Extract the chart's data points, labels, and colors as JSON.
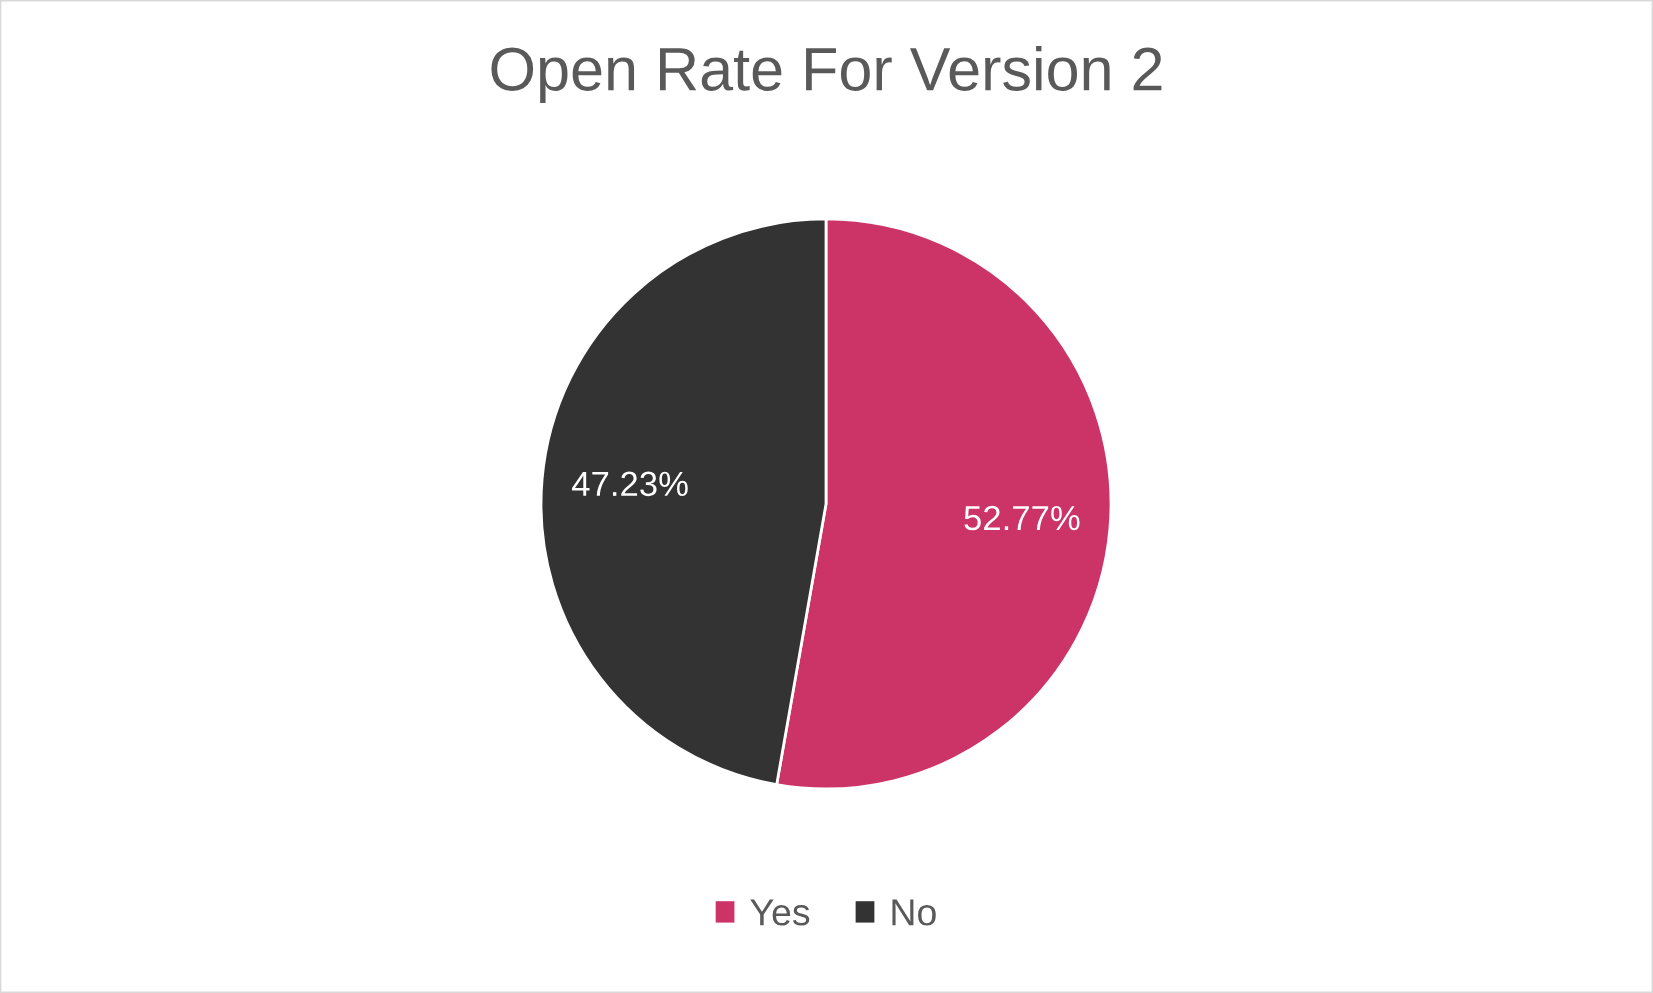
{
  "chart_data": {
    "type": "pie",
    "title": "Open Rate For Version 2",
    "categories": [
      "Yes",
      "No"
    ],
    "values": [
      52.77,
      47.23
    ],
    "colors": [
      "#cc3366",
      "#333333"
    ],
    "value_labels": [
      "52.77%",
      "47.23%"
    ],
    "legend": "bottom"
  }
}
